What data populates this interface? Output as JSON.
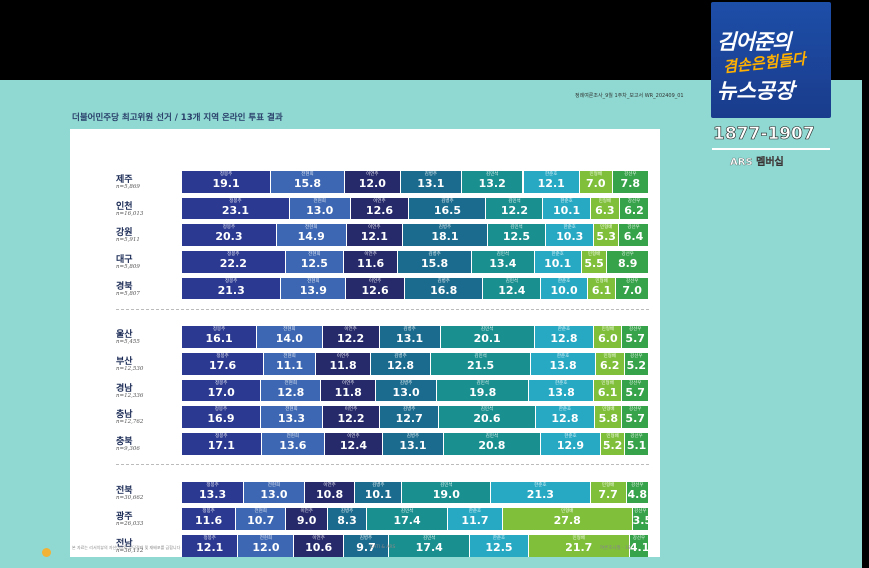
{
  "header": {
    "title": "더불어민주당 최고위원 선거 / 13개 지역 온라인 투표 결과",
    "right_text": "정례여론조사_9월 1주차_보고서  WR_202409_01"
  },
  "footer": {
    "left": "본 자료는 리서치뷰의 자산이므로 무단전재 및 재배포를 금합니다",
    "mid": "CATI & ARS",
    "right": "여론조사월 · 18"
  },
  "overlay": {
    "logo_line1": "김어준의",
    "logo_line2": "겸손은힘들다",
    "logo_line3": "뉴스공장",
    "phone": "1877-1907",
    "ars": "ARS 멤버십"
  },
  "colors": {
    "정봉주": "#2b3990",
    "전현희": "#3d67b2",
    "이언주": "#262a6b",
    "김병주": "#1b6b8e",
    "김민석": "#1a8f8f",
    "한준호": "#27a9c4",
    "민형배": "#7fbf3a",
    "강선우": "#36a24a"
  },
  "chart_data": {
    "type": "bar",
    "stacked": true,
    "orientation": "horizontal",
    "title": "더불어민주당 최고위원 선거 / 13개 지역 온라인 투표 결과",
    "groups": [
      {
        "rows": [
          {
            "region": "제주",
            "n": "n=5,869",
            "order": [
              "정봉주",
              "전현희",
              "이언주",
              "김병주",
              "김민석",
              "한준호",
              "민형배",
              "강선우"
            ],
            "values": [
              19.1,
              15.8,
              12.0,
              13.1,
              13.2,
              12.1,
              7.0,
              7.8
            ]
          },
          {
            "region": "인천",
            "n": "n=16,013",
            "order": [
              "정봉주",
              "전현희",
              "이언주",
              "김병주",
              "김민석",
              "한준호",
              "민형배",
              "강선우"
            ],
            "values": [
              23.1,
              13.0,
              12.6,
              16.5,
              12.2,
              10.1,
              6.3,
              6.2
            ]
          },
          {
            "region": "강원",
            "n": "n=5,911",
            "order": [
              "정봉주",
              "전현희",
              "이언주",
              "김병주",
              "김민석",
              "한준호",
              "민형배",
              "강선우"
            ],
            "values": [
              20.3,
              14.9,
              12.1,
              18.1,
              12.5,
              10.3,
              5.3,
              6.4
            ]
          },
          {
            "region": "대구",
            "n": "n=5,809",
            "order": [
              "정봉주",
              "전현희",
              "이언주",
              "김병주",
              "김민석",
              "한준호",
              "민형배",
              "강선우"
            ],
            "values": [
              22.2,
              12.5,
              11.6,
              15.8,
              13.4,
              10.1,
              5.5,
              8.9
            ]
          },
          {
            "region": "경북",
            "n": "n=5,807",
            "order": [
              "정봉주",
              "전현희",
              "이언주",
              "김병주",
              "김민석",
              "한준호",
              "민형배",
              "강선우"
            ],
            "values": [
              21.3,
              13.9,
              12.6,
              16.8,
              12.4,
              10.0,
              6.1,
              7.0
            ]
          }
        ]
      },
      {
        "rows": [
          {
            "region": "울산",
            "n": "n=5,455",
            "order": [
              "정봉주",
              "전현희",
              "이언주",
              "김병주",
              "김민석",
              "한준호",
              "민형배",
              "강선우"
            ],
            "values": [
              16.1,
              14.0,
              12.2,
              13.1,
              20.1,
              12.8,
              6.0,
              5.7
            ]
          },
          {
            "region": "부산",
            "n": "n=12,530",
            "order": [
              "정봉주",
              "전현희",
              "이언주",
              "김병주",
              "김민석",
              "한준호",
              "민형배",
              "강선우"
            ],
            "values": [
              17.6,
              11.1,
              11.8,
              12.8,
              21.5,
              13.8,
              6.2,
              5.2
            ]
          },
          {
            "region": "경남",
            "n": "n=12,336",
            "order": [
              "정봉주",
              "전현희",
              "이언주",
              "김병주",
              "김민석",
              "한준호",
              "민형배",
              "강선우"
            ],
            "values": [
              17.0,
              12.8,
              11.8,
              13.0,
              19.8,
              13.8,
              6.1,
              5.7
            ]
          },
          {
            "region": "충남",
            "n": "n=12,762",
            "order": [
              "정봉주",
              "전현희",
              "이언주",
              "김병주",
              "김민석",
              "한준호",
              "민형배",
              "강선우"
            ],
            "values": [
              16.9,
              13.3,
              12.2,
              12.7,
              20.6,
              12.8,
              5.8,
              5.7
            ]
          },
          {
            "region": "충북",
            "n": "n=9,306",
            "order": [
              "정봉주",
              "전현희",
              "이언주",
              "김병주",
              "김민석",
              "한준호",
              "민형배",
              "강선우"
            ],
            "values": [
              17.1,
              13.6,
              12.4,
              13.1,
              20.8,
              12.9,
              5.2,
              5.1
            ]
          }
        ]
      },
      {
        "rows": [
          {
            "region": "전북",
            "n": "n=30,662",
            "order": [
              "정봉주",
              "전현희",
              "이언주",
              "김병주",
              "김민석",
              "한준호",
              "민형배",
              "강선우"
            ],
            "values": [
              13.3,
              13.0,
              10.8,
              10.1,
              19.0,
              21.3,
              7.7,
              4.8
            ]
          },
          {
            "region": "광주",
            "n": "n=26,033",
            "order": [
              "정봉주",
              "전현희",
              "이언주",
              "김병주",
              "김민석",
              "한준호",
              "민형배",
              "강선우"
            ],
            "values": [
              11.6,
              10.7,
              9.0,
              8.3,
              17.4,
              11.7,
              27.8,
              3.5
            ]
          },
          {
            "region": "전남",
            "n": "n=36,112",
            "order": [
              "정봉주",
              "전현희",
              "이언주",
              "김병주",
              "김민석",
              "한준호",
              "민형배",
              "강선우"
            ],
            "values": [
              12.1,
              12.0,
              10.6,
              9.7,
              17.4,
              12.5,
              21.7,
              4.1
            ]
          }
        ]
      }
    ]
  }
}
